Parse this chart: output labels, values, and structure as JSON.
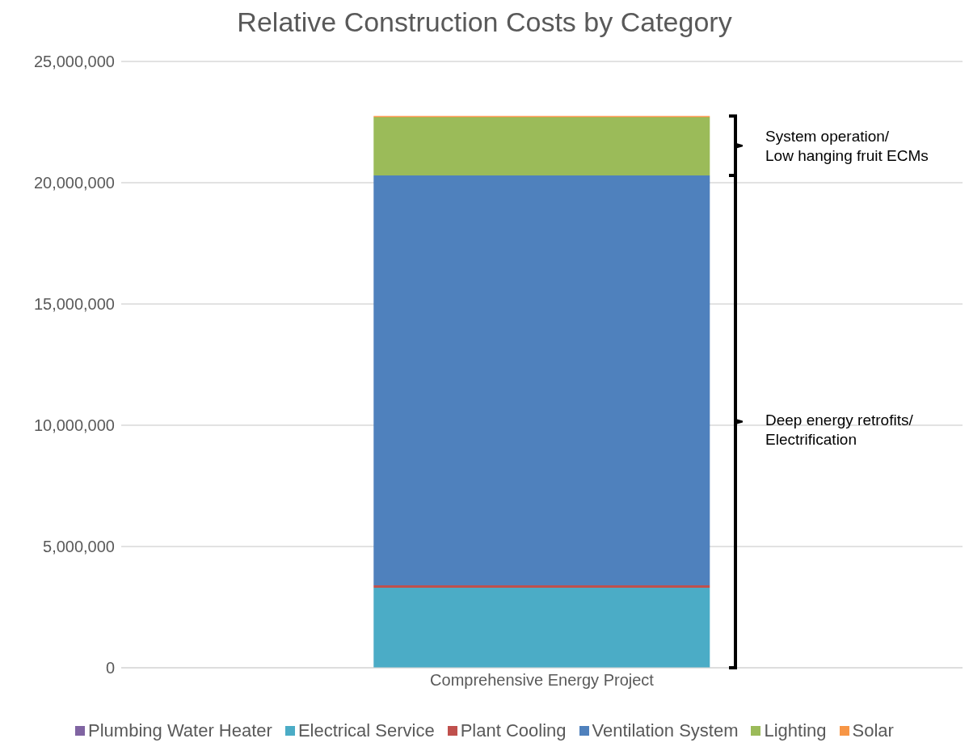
{
  "chart_data": {
    "type": "bar",
    "title": "Relative Construction Costs by Category",
    "stacked": true,
    "categories": [
      "Comprehensive Energy Project"
    ],
    "series": [
      {
        "name": "Plumbing Water Heater",
        "color": "#8064a2",
        "values": [
          0
        ]
      },
      {
        "name": "Electrical Service",
        "color": "#4bacc6",
        "values": [
          3300000
        ]
      },
      {
        "name": "Plant Cooling",
        "color": "#c0504d",
        "values": [
          100000
        ]
      },
      {
        "name": "Ventilation System",
        "color": "#4f81bd",
        "values": [
          16900000
        ]
      },
      {
        "name": "Lighting",
        "color": "#9bbb59",
        "values": [
          2400000
        ]
      },
      {
        "name": "Solar",
        "color": "#f79646",
        "values": [
          50000
        ]
      }
    ],
    "ylim": [
      0,
      25000000
    ],
    "yticks": [
      0,
      {
        "value": 5000000,
        "label": "5,000,000"
      },
      {
        "value": 10000000,
        "label": "10,000,000"
      },
      {
        "value": 15000000,
        "label": "15,000,000"
      },
      {
        "value": 20000000,
        "label": "20,000,000"
      },
      {
        "value": 25000000,
        "label": "25,000,000"
      }
    ],
    "grid": "y",
    "legend": "bottom",
    "annotations": [
      "System operation/\nLow hanging fruit ECMs",
      "Deep energy retrofits/\nElectrification"
    ]
  }
}
